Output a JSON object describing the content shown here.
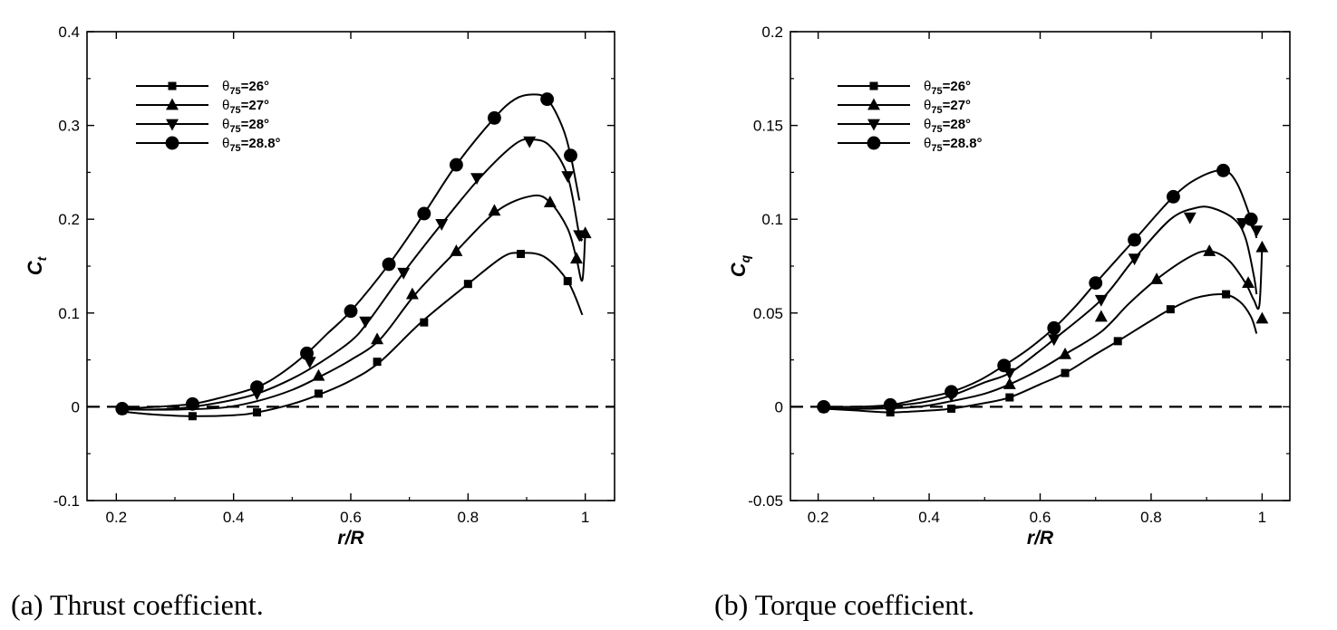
{
  "captions": [
    "(a) Thrust coefficient.",
    "(b) Torque coefficient."
  ],
  "legend_prefix": "θ",
  "legend_subscript": "75",
  "chart_data": [
    {
      "type": "line",
      "xlabel": "r/R",
      "ylabel": "C",
      "ylabel_sub": "t",
      "xlim": [
        0.15,
        1.05
      ],
      "ylim": [
        -0.1,
        0.4
      ],
      "xticks": [
        0.2,
        0.4,
        0.6,
        0.8,
        1.0
      ],
      "xtick_labels": [
        "0.2",
        "0.4",
        "0.6",
        "0.8",
        "1"
      ],
      "yticks": [
        -0.1,
        0,
        0.1,
        0.2,
        0.3,
        0.4
      ],
      "ytick_labels": [
        "-0.1",
        "0",
        "0.1",
        "0.2",
        "0.3",
        "0.4"
      ],
      "zero_line": true,
      "legend_position": "top-left",
      "series": [
        {
          "name": "=26°",
          "marker": "square",
          "x": [
            0.21,
            0.26,
            0.33,
            0.4,
            0.44,
            0.5,
            0.55,
            0.6,
            0.65,
            0.72,
            0.8,
            0.86,
            0.89,
            0.93,
            0.97,
            0.995
          ],
          "y": [
            -0.005,
            -0.008,
            -0.01,
            -0.009,
            -0.006,
            0.003,
            0.014,
            0.028,
            0.048,
            0.09,
            0.131,
            0.16,
            0.164,
            0.16,
            0.134,
            0.098
          ],
          "markers_x": [
            0.21,
            0.33,
            0.44,
            0.545,
            0.645,
            0.725,
            0.8,
            0.89,
            0.97
          ],
          "markers_y": [
            -0.004,
            -0.01,
            -0.006,
            0.014,
            0.048,
            0.09,
            0.131,
            0.163,
            0.134
          ]
        },
        {
          "name": "=27°",
          "marker": "triangle-up",
          "x": [
            0.21,
            0.3,
            0.38,
            0.44,
            0.5,
            0.55,
            0.6,
            0.65,
            0.71,
            0.78,
            0.85,
            0.91,
            0.94,
            0.97,
            0.985,
            0.995,
            1.0
          ],
          "y": [
            -0.003,
            -0.003,
            -0.001,
            0.006,
            0.018,
            0.033,
            0.05,
            0.072,
            0.12,
            0.166,
            0.209,
            0.225,
            0.218,
            0.19,
            0.158,
            0.135,
            0.185
          ],
          "markers_x": [
            0.545,
            0.645,
            0.705,
            0.78,
            0.845,
            0.94,
            0.985,
            1.0
          ],
          "markers_y": [
            0.033,
            0.072,
            0.12,
            0.166,
            0.209,
            0.218,
            0.158,
            0.185
          ]
        },
        {
          "name": "=28°",
          "marker": "triangle-down",
          "x": [
            0.21,
            0.3,
            0.38,
            0.44,
            0.5,
            0.55,
            0.6,
            0.63,
            0.69,
            0.755,
            0.82,
            0.88,
            0.91,
            0.94,
            0.97,
            0.99,
            0.995
          ],
          "y": [
            -0.003,
            -0.002,
            0.005,
            0.014,
            0.03,
            0.048,
            0.07,
            0.091,
            0.143,
            0.195,
            0.244,
            0.28,
            0.285,
            0.278,
            0.246,
            0.183,
            0.18
          ],
          "markers_x": [
            0.44,
            0.53,
            0.625,
            0.69,
            0.755,
            0.815,
            0.905,
            0.97,
            0.99
          ],
          "markers_y": [
            0.014,
            0.048,
            0.091,
            0.143,
            0.195,
            0.244,
            0.283,
            0.246,
            0.183
          ]
        },
        {
          "name": "=28.8°",
          "marker": "circle",
          "x": [
            0.21,
            0.27,
            0.33,
            0.38,
            0.44,
            0.48,
            0.525,
            0.56,
            0.6,
            0.665,
            0.725,
            0.78,
            0.845,
            0.88,
            0.91,
            0.935,
            0.96,
            0.975,
            0.99
          ],
          "y": [
            -0.002,
            0.0,
            0.003,
            0.01,
            0.021,
            0.035,
            0.057,
            0.078,
            0.102,
            0.152,
            0.206,
            0.258,
            0.308,
            0.328,
            0.333,
            0.328,
            0.3,
            0.268,
            0.22
          ],
          "markers_x": [
            0.21,
            0.33,
            0.44,
            0.525,
            0.6,
            0.665,
            0.725,
            0.78,
            0.845,
            0.935,
            0.975
          ],
          "markers_y": [
            -0.002,
            0.003,
            0.021,
            0.057,
            0.102,
            0.152,
            0.206,
            0.258,
            0.308,
            0.328,
            0.268
          ]
        }
      ]
    },
    {
      "type": "line",
      "xlabel": "r/R",
      "ylabel": "C",
      "ylabel_sub": "q",
      "xlim": [
        0.15,
        1.05
      ],
      "ylim": [
        -0.05,
        0.2
      ],
      "xticks": [
        0.2,
        0.4,
        0.6,
        0.8,
        1.0
      ],
      "xtick_labels": [
        "0.2",
        "0.4",
        "0.6",
        "0.8",
        "1"
      ],
      "yticks": [
        -0.05,
        0,
        0.05,
        0.1,
        0.15,
        0.2
      ],
      "ytick_labels": [
        "-0.05",
        "0",
        "0.05",
        "0.1",
        "0.15",
        "0.2"
      ],
      "zero_line": true,
      "legend_position": "top-left",
      "series": [
        {
          "name": "=26°",
          "marker": "square",
          "x": [
            0.21,
            0.27,
            0.33,
            0.4,
            0.44,
            0.5,
            0.545,
            0.6,
            0.645,
            0.7,
            0.74,
            0.8,
            0.835,
            0.88,
            0.93,
            0.96,
            0.98,
            0.99
          ],
          "y": [
            -0.001,
            -0.002,
            -0.003,
            -0.002,
            -0.001,
            0.002,
            0.005,
            0.012,
            0.018,
            0.028,
            0.035,
            0.046,
            0.052,
            0.058,
            0.06,
            0.056,
            0.048,
            0.039
          ],
          "markers_x": [
            0.21,
            0.33,
            0.44,
            0.545,
            0.645,
            0.74,
            0.835,
            0.935
          ],
          "markers_y": [
            -0.001,
            -0.003,
            -0.001,
            0.005,
            0.018,
            0.035,
            0.052,
            0.06
          ]
        },
        {
          "name": "=27°",
          "marker": "triangle-up",
          "x": [
            0.21,
            0.3,
            0.38,
            0.44,
            0.5,
            0.545,
            0.6,
            0.645,
            0.71,
            0.76,
            0.81,
            0.87,
            0.905,
            0.94,
            0.97,
            0.985,
            0.995,
            1.0
          ],
          "y": [
            -0.001,
            -0.001,
            0.0,
            0.003,
            0.007,
            0.012,
            0.02,
            0.028,
            0.04,
            0.055,
            0.068,
            0.08,
            0.083,
            0.078,
            0.066,
            0.057,
            0.054,
            0.085
          ],
          "markers_x": [
            0.545,
            0.645,
            0.71,
            0.81,
            0.905,
            0.975,
            1.0,
            1.0
          ],
          "markers_y": [
            0.012,
            0.028,
            0.048,
            0.068,
            0.083,
            0.066,
            0.085,
            0.047
          ]
        },
        {
          "name": "=28°",
          "marker": "triangle-down",
          "x": [
            0.21,
            0.3,
            0.38,
            0.44,
            0.5,
            0.545,
            0.6,
            0.625,
            0.71,
            0.77,
            0.835,
            0.88,
            0.91,
            0.95,
            0.97,
            0.985,
            0.99
          ],
          "y": [
            0.0,
            0.0,
            0.002,
            0.006,
            0.013,
            0.018,
            0.03,
            0.036,
            0.057,
            0.079,
            0.1,
            0.106,
            0.106,
            0.1,
            0.09,
            0.07,
            0.06
          ],
          "markers_x": [
            0.44,
            0.545,
            0.625,
            0.71,
            0.77,
            0.87,
            0.965,
            0.99
          ],
          "markers_y": [
            0.006,
            0.018,
            0.036,
            0.057,
            0.079,
            0.101,
            0.098,
            0.094
          ]
        },
        {
          "name": "=28.8°",
          "marker": "circle",
          "x": [
            0.21,
            0.27,
            0.33,
            0.38,
            0.44,
            0.49,
            0.535,
            0.58,
            0.625,
            0.665,
            0.7,
            0.77,
            0.84,
            0.885,
            0.93,
            0.955,
            0.98,
            0.99
          ],
          "y": [
            0.0,
            0.0,
            0.001,
            0.004,
            0.008,
            0.014,
            0.022,
            0.031,
            0.042,
            0.054,
            0.066,
            0.089,
            0.112,
            0.122,
            0.126,
            0.119,
            0.1,
            0.09
          ],
          "markers_x": [
            0.21,
            0.33,
            0.44,
            0.535,
            0.625,
            0.7,
            0.77,
            0.84,
            0.93,
            0.98
          ],
          "markers_y": [
            0.0,
            0.001,
            0.008,
            0.022,
            0.042,
            0.066,
            0.089,
            0.112,
            0.126,
            0.1
          ]
        }
      ]
    }
  ]
}
